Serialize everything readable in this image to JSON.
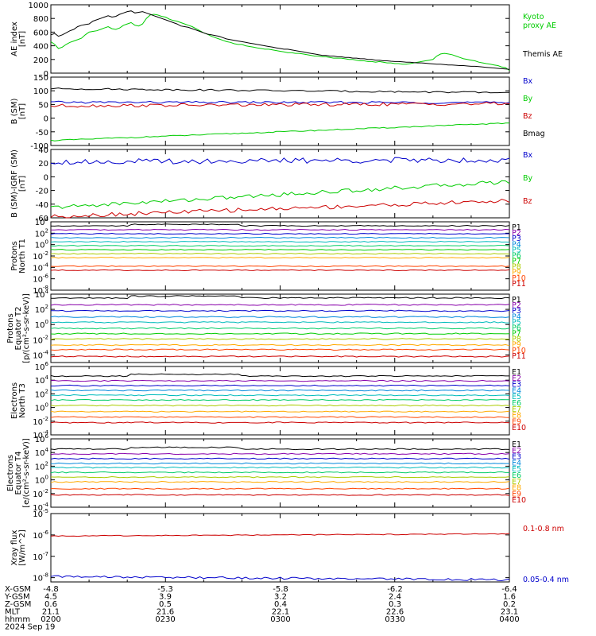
{
  "colors": {
    "black": "#000000",
    "blue": "#0000cc",
    "green": "#00cc00",
    "red": "#cc0000"
  },
  "chart_data": [
    {
      "type": "line",
      "ylabel": [
        "AE index",
        "[nT]"
      ],
      "y_ticks": [
        "1000",
        "800",
        "600",
        "400",
        "200",
        "0"
      ],
      "ylim": [
        0,
        1000
      ],
      "x": [
        0,
        1,
        2,
        3,
        4,
        5,
        6,
        7,
        8,
        9,
        10,
        11,
        12,
        13,
        14,
        15,
        16,
        17,
        18,
        19,
        20,
        21,
        22,
        23,
        24,
        25,
        26,
        27,
        28,
        29,
        30,
        31,
        32,
        33,
        34,
        35,
        36,
        37,
        38,
        39,
        40,
        41,
        42,
        43,
        44,
        45,
        46,
        47,
        48,
        49,
        50,
        51,
        52,
        53,
        54,
        55,
        56,
        57,
        58,
        59,
        60,
        61,
        62,
        63,
        64,
        65,
        66,
        67,
        68,
        69,
        70,
        71,
        72,
        73,
        74,
        75,
        76,
        77,
        78,
        79,
        80,
        81,
        82,
        83,
        84,
        85,
        86,
        87,
        88,
        89,
        90,
        91,
        92,
        93,
        94,
        95,
        96,
        97,
        98,
        99,
        100,
        101,
        102,
        103,
        104,
        105,
        106,
        107,
        108,
        109,
        110,
        111,
        112,
        113,
        114,
        115,
        116,
        117,
        118,
        119,
        120
      ],
      "series": [
        {
          "name": "Kyoto proxy AE",
          "legend": [
            "Kyoto",
            "proxy AE"
          ],
          "color": "#00cc00",
          "values": [
            460,
            420,
            360,
            380,
            420,
            450,
            470,
            490,
            510,
            560,
            600,
            610,
            620,
            640,
            660,
            680,
            650,
            640,
            660,
            700,
            720,
            740,
            700,
            690,
            720,
            800,
            850,
            860,
            850,
            830,
            820,
            790,
            770,
            760,
            740,
            720,
            700,
            680,
            650,
            620,
            590,
            570,
            540,
            520,
            500,
            480,
            460,
            450,
            430,
            420,
            420,
            400,
            390,
            380,
            370,
            360,
            350,
            350,
            340,
            330,
            320,
            310,
            300,
            300,
            290,
            290,
            280,
            270,
            260,
            250,
            250,
            240,
            240,
            230,
            220,
            220,
            220,
            210,
            200,
            200,
            190,
            180,
            180,
            170,
            170,
            160,
            170,
            160,
            150,
            150,
            140,
            140,
            130,
            130,
            140,
            150,
            160,
            170,
            180,
            190,
            200,
            250,
            280,
            290,
            280,
            270,
            250,
            230,
            210,
            200,
            190,
            180,
            160,
            150,
            140,
            130,
            120,
            110,
            90,
            80,
            40
          ]
        },
        {
          "name": "Themis AE",
          "legend": [
            "Themis AE"
          ],
          "color": "#000000",
          "values": [
            560,
            580,
            540,
            560,
            590,
            620,
            640,
            680,
            700,
            710,
            720,
            760,
            780,
            800,
            820,
            840,
            820,
            830,
            860,
            880,
            900,
            910,
            880,
            890,
            900,
            880,
            860,
            840,
            820,
            800,
            780,
            760,
            740,
            720,
            690,
            680,
            670,
            650,
            630,
            610,
            590,
            570,
            560,
            550,
            540,
            520,
            500,
            490,
            480,
            470,
            460,
            450,
            440,
            430,
            420,
            410,
            400,
            390,
            380,
            370,
            360,
            350,
            350,
            340,
            330,
            320,
            310,
            300,
            290,
            280,
            270,
            260,
            260,
            250,
            250,
            240,
            240,
            230,
            230,
            220,
            220,
            210,
            210,
            200,
            200,
            190,
            190,
            180,
            180,
            175,
            170,
            170,
            165,
            160,
            160,
            155,
            150,
            150,
            145,
            140,
            135,
            130,
            130,
            125,
            120,
            120,
            115,
            110,
            110,
            105,
            100,
            100,
            95,
            90,
            85,
            80,
            75,
            70,
            65,
            60,
            55
          ]
        }
      ]
    },
    {
      "type": "line",
      "ylabel": [
        "B (SM)",
        "[nT]"
      ],
      "y_ticks": [
        "150",
        "100",
        "50",
        "0",
        "-50",
        "-100"
      ],
      "ylim": [
        -100,
        150
      ],
      "series": [
        {
          "name": "Bx",
          "color": "#0000cc",
          "baseline": 58,
          "end": 57,
          "jitter": 4
        },
        {
          "name": "By",
          "color": "#00cc00",
          "baseline": -82,
          "end": -18,
          "jitter": 2
        },
        {
          "name": "Bz",
          "color": "#cc0000",
          "baseline": 45,
          "end": 53,
          "jitter": 6
        },
        {
          "name": "Bmag",
          "color": "#000000",
          "baseline": 108,
          "end": 93,
          "jitter": 3
        }
      ]
    },
    {
      "type": "line",
      "ylabel": [
        "B (SM)-IGRF (SM)",
        "[nT]"
      ],
      "y_ticks": [
        "40",
        "20",
        "0",
        "-20",
        "-40",
        "-60"
      ],
      "ylim": [
        -60,
        40
      ],
      "series": [
        {
          "name": "Bx",
          "color": "#0000cc",
          "baseline": 22,
          "end": 25,
          "jitter": 4
        },
        {
          "name": "By",
          "color": "#00cc00",
          "baseline": -45,
          "end": -7,
          "jitter": 3
        },
        {
          "name": "Bz",
          "color": "#cc0000",
          "baseline": -58,
          "end": -35,
          "jitter": 3
        }
      ]
    },
    {
      "type": "line",
      "ylabel": [
        "Protons",
        "North T1"
      ],
      "y_ticks": [
        "10^4",
        "10^2",
        "10^0",
        "10^-2",
        "10^-4",
        "10^-6",
        "10^-8"
      ],
      "ylim": [
        -8,
        4
      ],
      "channels": [
        "P1",
        "P2",
        "P3",
        "P4",
        "P5",
        "P6",
        "P7",
        "P8",
        "P9",
        "P10",
        "P11"
      ],
      "channel_colors": [
        "#000000",
        "#8800aa",
        "#0000cc",
        "#0088dd",
        "#00bbbb",
        "#00cc66",
        "#00cc00",
        "#aacc00",
        "#ffaa00",
        "#ff4400",
        "#cc0000"
      ],
      "levels": [
        3.3,
        2.6,
        1.9,
        1.2,
        0.5,
        -0.2,
        -0.9,
        -1.6,
        -2.3,
        -3.8,
        -4.5
      ]
    },
    {
      "type": "line",
      "ylabel": [
        "Protons",
        "Equator T2",
        "[p/(cm²-s-sr-keV)]"
      ],
      "y_ticks": [
        "10^4",
        "10^2",
        "10^0",
        "10^-2",
        "10^-4"
      ],
      "ylim": [
        -5,
        4
      ],
      "channels": [
        "P1",
        "P2",
        "P3",
        "P4",
        "P5",
        "P6",
        "P7",
        "P8",
        "P9",
        "P10",
        "P11"
      ],
      "channel_colors": [
        "#000000",
        "#8800aa",
        "#0000cc",
        "#0088dd",
        "#00bbbb",
        "#00cc66",
        "#00cc00",
        "#aacc00",
        "#ffaa00",
        "#ff4400",
        "#cc0000"
      ],
      "levels": [
        3.5,
        2.6,
        1.8,
        1.0,
        0.3,
        -0.5,
        -1.2,
        -1.9,
        -2.7,
        -3.3,
        -4.2
      ]
    },
    {
      "type": "line",
      "ylabel": [
        "Electrons",
        "North T3"
      ],
      "y_ticks": [
        "10^6",
        "10^4",
        "10^2",
        "10^0",
        "10^-2",
        "10^-4"
      ],
      "ylim": [
        -4,
        6
      ],
      "channels": [
        "E1",
        "E2",
        "E3",
        "E4",
        "E5",
        "E6",
        "E7",
        "E8",
        "E9",
        "E10"
      ],
      "channel_colors": [
        "#000000",
        "#8800aa",
        "#0000cc",
        "#0088dd",
        "#00bbbb",
        "#00cc66",
        "#aacc00",
        "#ffaa00",
        "#ff4400",
        "#cc0000"
      ],
      "levels": [
        4.6,
        3.9,
        3.2,
        2.5,
        1.8,
        1.1,
        0.3,
        -0.6,
        -1.4,
        -2.2
      ]
    },
    {
      "type": "line",
      "ylabel": [
        "Electrons",
        "Equator T4",
        "[e/(cm²-s-sr-keV)]"
      ],
      "y_ticks": [
        "10^6",
        "10^4",
        "10^2",
        "10^0",
        "10^-2",
        "10^-4"
      ],
      "ylim": [
        -4,
        6
      ],
      "channels": [
        "E1",
        "E2",
        "E3",
        "E4",
        "E5",
        "E6",
        "E7",
        "E8",
        "E9",
        "E10"
      ],
      "channel_colors": [
        "#000000",
        "#8800aa",
        "#0000cc",
        "#0088dd",
        "#00bbbb",
        "#00cc66",
        "#aacc00",
        "#ffaa00",
        "#ff4400",
        "#cc0000"
      ],
      "levels": [
        4.5,
        3.8,
        3.1,
        2.4,
        1.8,
        1.1,
        0.4,
        -0.3,
        -1.3,
        -2.2
      ]
    },
    {
      "type": "line",
      "ylabel": [
        "Xray flux",
        "[W/m^2]"
      ],
      "y_ticks": [
        "10^-5",
        "10^-6",
        "10^-7",
        "10^-8"
      ],
      "ylim": [
        -8.2,
        -5
      ],
      "series": [
        {
          "name": "0.1-0.8 nm",
          "color": "#cc0000",
          "baseline": -6.05,
          "end": -5.95,
          "jitter": 0.02
        },
        {
          "name": "0.05-0.4 nm",
          "color": "#0000cc",
          "baseline": -7.95,
          "end": -8.1,
          "jitter": 0.05
        }
      ]
    }
  ],
  "x_axis": {
    "rows": [
      {
        "label": "X-GSM",
        "values": [
          "-4.8",
          "-5.3",
          "-5.8",
          "-6.2",
          "-6.4"
        ]
      },
      {
        "label": "Y-GSM",
        "values": [
          "4.5",
          "3.9",
          "3.2",
          "2.4",
          "1.6"
        ]
      },
      {
        "label": "Z-GSM",
        "values": [
          "0.6",
          "0.5",
          "0.4",
          "0.3",
          "0.2"
        ]
      },
      {
        "label": "MLT",
        "values": [
          "21.1",
          "21.6",
          "22.1",
          "22.6",
          "23.1"
        ]
      },
      {
        "label": "hhmm",
        "values": [
          "0200",
          "0230",
          "0300",
          "0330",
          "0400"
        ]
      }
    ],
    "date": "2024 Sep 19"
  }
}
